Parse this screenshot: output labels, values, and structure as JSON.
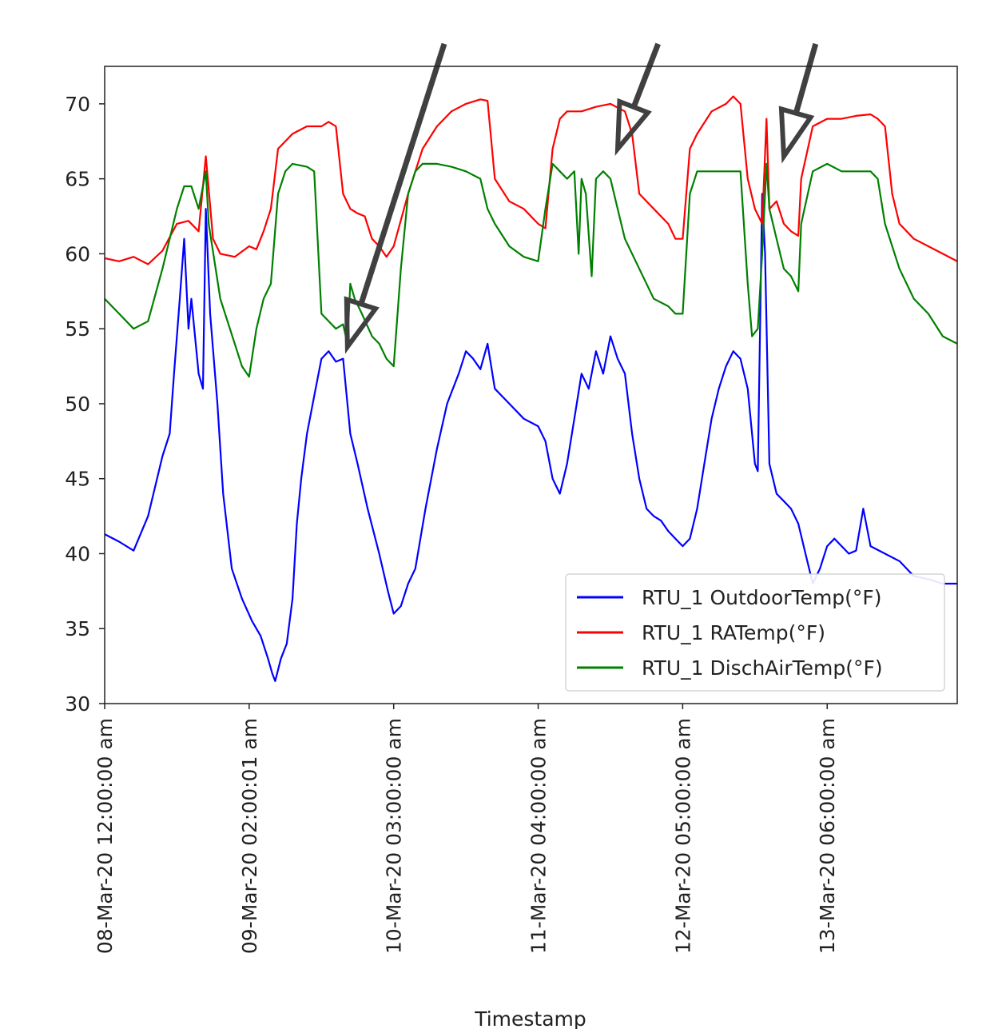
{
  "chart_data": {
    "type": "line",
    "xlabel": "Timestamp",
    "ylabel": "",
    "ylim": [
      30,
      72.5
    ],
    "yticks": [
      30,
      35,
      40,
      45,
      50,
      55,
      60,
      65,
      70
    ],
    "xlim": [
      0,
      5.9
    ],
    "xticks": [
      {
        "pos": 0,
        "label": "08-Mar-20 12:00:00 am"
      },
      {
        "pos": 1,
        "label": "09-Mar-20 02:00:01 am"
      },
      {
        "pos": 2,
        "label": "10-Mar-20 03:00:00 am"
      },
      {
        "pos": 3,
        "label": "11-Mar-20 04:00:00 am"
      },
      {
        "pos": 4,
        "label": "12-Mar-20 05:00:00 am"
      },
      {
        "pos": 5,
        "label": "13-Mar-20 06:00:00 am"
      }
    ],
    "grid": false,
    "legend_position": "bottom-right",
    "series": [
      {
        "name": "RTU_1 OutdoorTemp(°F)",
        "color": "#0000ff",
        "points": [
          [
            0,
            41.3
          ],
          [
            0.1,
            40.8
          ],
          [
            0.2,
            40.2
          ],
          [
            0.3,
            42.5
          ],
          [
            0.35,
            44.5
          ],
          [
            0.4,
            46.5
          ],
          [
            0.45,
            48
          ],
          [
            0.48,
            52
          ],
          [
            0.52,
            57
          ],
          [
            0.55,
            61
          ],
          [
            0.58,
            55
          ],
          [
            0.6,
            57
          ],
          [
            0.65,
            52
          ],
          [
            0.68,
            51
          ],
          [
            0.7,
            63
          ],
          [
            0.73,
            56
          ],
          [
            0.78,
            50
          ],
          [
            0.82,
            44
          ],
          [
            0.88,
            39
          ],
          [
            0.95,
            37
          ],
          [
            1.02,
            35.5
          ],
          [
            1.08,
            34.5
          ],
          [
            1.13,
            33
          ],
          [
            1.16,
            32
          ],
          [
            1.18,
            31.5
          ],
          [
            1.22,
            33
          ],
          [
            1.26,
            34
          ],
          [
            1.3,
            37
          ],
          [
            1.33,
            42
          ],
          [
            1.36,
            45
          ],
          [
            1.4,
            48
          ],
          [
            1.46,
            51
          ],
          [
            1.5,
            53
          ],
          [
            1.55,
            53.5
          ],
          [
            1.6,
            52.8
          ],
          [
            1.65,
            53
          ],
          [
            1.7,
            48
          ],
          [
            1.75,
            46
          ],
          [
            1.82,
            43
          ],
          [
            1.9,
            40
          ],
          [
            1.96,
            37.5
          ],
          [
            2.0,
            36
          ],
          [
            2.05,
            36.5
          ],
          [
            2.1,
            38
          ],
          [
            2.15,
            39
          ],
          [
            2.22,
            43
          ],
          [
            2.3,
            47
          ],
          [
            2.37,
            50
          ],
          [
            2.45,
            52
          ],
          [
            2.5,
            53.5
          ],
          [
            2.55,
            53
          ],
          [
            2.6,
            52.3
          ],
          [
            2.65,
            54
          ],
          [
            2.7,
            51
          ],
          [
            2.8,
            50
          ],
          [
            2.9,
            49
          ],
          [
            3.0,
            48.5
          ],
          [
            3.05,
            47.5
          ],
          [
            3.1,
            45
          ],
          [
            3.15,
            44
          ],
          [
            3.2,
            46
          ],
          [
            3.25,
            49
          ],
          [
            3.3,
            52
          ],
          [
            3.35,
            51
          ],
          [
            3.4,
            53.5
          ],
          [
            3.45,
            52
          ],
          [
            3.5,
            54.5
          ],
          [
            3.55,
            53
          ],
          [
            3.6,
            52
          ],
          [
            3.65,
            48
          ],
          [
            3.7,
            45
          ],
          [
            3.75,
            43
          ],
          [
            3.8,
            42.5
          ],
          [
            3.85,
            42.2
          ],
          [
            3.9,
            41.5
          ],
          [
            3.95,
            41
          ],
          [
            4.0,
            40.5
          ],
          [
            4.05,
            41
          ],
          [
            4.1,
            43
          ],
          [
            4.15,
            46
          ],
          [
            4.2,
            49
          ],
          [
            4.25,
            51
          ],
          [
            4.3,
            52.5
          ],
          [
            4.35,
            53.5
          ],
          [
            4.4,
            53
          ],
          [
            4.45,
            51
          ],
          [
            4.5,
            46
          ],
          [
            4.52,
            45.5
          ],
          [
            4.55,
            64
          ],
          [
            4.57,
            60
          ],
          [
            4.6,
            46
          ],
          [
            4.65,
            44
          ],
          [
            4.7,
            43.5
          ],
          [
            4.75,
            43
          ],
          [
            4.8,
            42
          ],
          [
            4.85,
            40
          ],
          [
            4.9,
            38
          ],
          [
            4.95,
            39
          ],
          [
            5.0,
            40.5
          ],
          [
            5.05,
            41
          ],
          [
            5.1,
            40.5
          ],
          [
            5.15,
            40
          ],
          [
            5.2,
            40.2
          ],
          [
            5.25,
            43
          ],
          [
            5.3,
            40.5
          ],
          [
            5.4,
            40
          ],
          [
            5.5,
            39.5
          ],
          [
            5.6,
            38.5
          ],
          [
            5.7,
            38.3
          ],
          [
            5.8,
            38
          ],
          [
            5.9,
            38
          ]
        ]
      },
      {
        "name": "RTU_1 RATemp(°F)",
        "color": "#ff0000",
        "points": [
          [
            0,
            59.7
          ],
          [
            0.1,
            59.5
          ],
          [
            0.2,
            59.8
          ],
          [
            0.3,
            59.3
          ],
          [
            0.4,
            60.2
          ],
          [
            0.5,
            62
          ],
          [
            0.58,
            62.2
          ],
          [
            0.65,
            61.5
          ],
          [
            0.7,
            66.5
          ],
          [
            0.75,
            61
          ],
          [
            0.8,
            60
          ],
          [
            0.9,
            59.8
          ],
          [
            1.0,
            60.5
          ],
          [
            1.05,
            60.3
          ],
          [
            1.1,
            61.5
          ],
          [
            1.15,
            63
          ],
          [
            1.2,
            67
          ],
          [
            1.3,
            68
          ],
          [
            1.4,
            68.5
          ],
          [
            1.5,
            68.5
          ],
          [
            1.55,
            68.8
          ],
          [
            1.6,
            68.5
          ],
          [
            1.65,
            64
          ],
          [
            1.7,
            63
          ],
          [
            1.75,
            62.7
          ],
          [
            1.8,
            62.5
          ],
          [
            1.85,
            61
          ],
          [
            1.9,
            60.5
          ],
          [
            1.95,
            59.8
          ],
          [
            2.0,
            60.5
          ],
          [
            2.1,
            64
          ],
          [
            2.2,
            67
          ],
          [
            2.3,
            68.5
          ],
          [
            2.4,
            69.5
          ],
          [
            2.5,
            70
          ],
          [
            2.6,
            70.3
          ],
          [
            2.65,
            70.2
          ],
          [
            2.7,
            65
          ],
          [
            2.8,
            63.5
          ],
          [
            2.9,
            63
          ],
          [
            3.0,
            62
          ],
          [
            3.05,
            61.7
          ],
          [
            3.1,
            67
          ],
          [
            3.15,
            69
          ],
          [
            3.2,
            69.5
          ],
          [
            3.3,
            69.5
          ],
          [
            3.4,
            69.8
          ],
          [
            3.5,
            70
          ],
          [
            3.6,
            69.5
          ],
          [
            3.65,
            68
          ],
          [
            3.7,
            64
          ],
          [
            3.8,
            63
          ],
          [
            3.9,
            62
          ],
          [
            3.95,
            61
          ],
          [
            4.0,
            61
          ],
          [
            4.05,
            67
          ],
          [
            4.1,
            68
          ],
          [
            4.2,
            69.5
          ],
          [
            4.3,
            70
          ],
          [
            4.35,
            70.5
          ],
          [
            4.4,
            70
          ],
          [
            4.45,
            65
          ],
          [
            4.5,
            63
          ],
          [
            4.55,
            62
          ],
          [
            4.58,
            69
          ],
          [
            4.6,
            63
          ],
          [
            4.65,
            63.5
          ],
          [
            4.7,
            62
          ],
          [
            4.75,
            61.5
          ],
          [
            4.8,
            61.2
          ],
          [
            4.82,
            65
          ],
          [
            4.9,
            68.5
          ],
          [
            5.0,
            69
          ],
          [
            5.1,
            69
          ],
          [
            5.2,
            69.2
          ],
          [
            5.3,
            69.3
          ],
          [
            5.35,
            69
          ],
          [
            5.4,
            68.5
          ],
          [
            5.45,
            64
          ],
          [
            5.5,
            62
          ],
          [
            5.6,
            61
          ],
          [
            5.7,
            60.5
          ],
          [
            5.8,
            60
          ],
          [
            5.9,
            59.5
          ]
        ]
      },
      {
        "name": "RTU_1 DischAirTemp(°F)",
        "color": "#008000",
        "points": [
          [
            0,
            57
          ],
          [
            0.1,
            56
          ],
          [
            0.2,
            55
          ],
          [
            0.3,
            55.5
          ],
          [
            0.4,
            59
          ],
          [
            0.5,
            63
          ],
          [
            0.55,
            64.5
          ],
          [
            0.6,
            64.5
          ],
          [
            0.65,
            63
          ],
          [
            0.7,
            65.5
          ],
          [
            0.72,
            62
          ],
          [
            0.8,
            57
          ],
          [
            0.9,
            54
          ],
          [
            0.95,
            52.5
          ],
          [
            1.0,
            51.8
          ],
          [
            1.05,
            55
          ],
          [
            1.1,
            57
          ],
          [
            1.15,
            58
          ],
          [
            1.2,
            64
          ],
          [
            1.25,
            65.5
          ],
          [
            1.3,
            66
          ],
          [
            1.4,
            65.8
          ],
          [
            1.45,
            65.5
          ],
          [
            1.5,
            56
          ],
          [
            1.55,
            55.5
          ],
          [
            1.6,
            55
          ],
          [
            1.65,
            55.3
          ],
          [
            1.68,
            54
          ],
          [
            1.7,
            58
          ],
          [
            1.73,
            57
          ],
          [
            1.78,
            56
          ],
          [
            1.85,
            54.5
          ],
          [
            1.9,
            54
          ],
          [
            1.95,
            53
          ],
          [
            2.0,
            52.5
          ],
          [
            2.05,
            59
          ],
          [
            2.1,
            64
          ],
          [
            2.15,
            65.5
          ],
          [
            2.2,
            66
          ],
          [
            2.3,
            66
          ],
          [
            2.4,
            65.8
          ],
          [
            2.5,
            65.5
          ],
          [
            2.6,
            65
          ],
          [
            2.65,
            63
          ],
          [
            2.7,
            62
          ],
          [
            2.8,
            60.5
          ],
          [
            2.9,
            59.8
          ],
          [
            3.0,
            59.5
          ],
          [
            3.05,
            63
          ],
          [
            3.1,
            66
          ],
          [
            3.15,
            65.5
          ],
          [
            3.2,
            65
          ],
          [
            3.25,
            65.5
          ],
          [
            3.28,
            60
          ],
          [
            3.3,
            65
          ],
          [
            3.33,
            64
          ],
          [
            3.37,
            58.5
          ],
          [
            3.4,
            65
          ],
          [
            3.45,
            65.5
          ],
          [
            3.5,
            65
          ],
          [
            3.55,
            63
          ],
          [
            3.6,
            61
          ],
          [
            3.7,
            59
          ],
          [
            3.8,
            57
          ],
          [
            3.9,
            56.5
          ],
          [
            3.95,
            56
          ],
          [
            4.0,
            56
          ],
          [
            4.05,
            64
          ],
          [
            4.1,
            65.5
          ],
          [
            4.2,
            65.5
          ],
          [
            4.3,
            65.5
          ],
          [
            4.4,
            65.5
          ],
          [
            4.45,
            58
          ],
          [
            4.48,
            54.5
          ],
          [
            4.52,
            55
          ],
          [
            4.55,
            60
          ],
          [
            4.58,
            66
          ],
          [
            4.6,
            63
          ],
          [
            4.65,
            61
          ],
          [
            4.7,
            59
          ],
          [
            4.75,
            58.5
          ],
          [
            4.8,
            57.5
          ],
          [
            4.82,
            62
          ],
          [
            4.9,
            65.5
          ],
          [
            5.0,
            66
          ],
          [
            5.1,
            65.5
          ],
          [
            5.2,
            65.5
          ],
          [
            5.3,
            65.5
          ],
          [
            5.35,
            65
          ],
          [
            5.4,
            62
          ],
          [
            5.5,
            59
          ],
          [
            5.6,
            57
          ],
          [
            5.7,
            56
          ],
          [
            5.8,
            54.5
          ],
          [
            5.9,
            54
          ]
        ]
      }
    ],
    "arrows": [
      {
        "from": [
          2.35,
          74
        ],
        "to": [
          1.68,
          53.8
        ],
        "color": "#404040"
      },
      {
        "from": [
          3.83,
          74
        ],
        "to": [
          3.55,
          67
        ],
        "color": "#404040"
      },
      {
        "from": [
          4.92,
          74
        ],
        "to": [
          4.7,
          66.5
        ],
        "color": "#404040"
      }
    ]
  }
}
